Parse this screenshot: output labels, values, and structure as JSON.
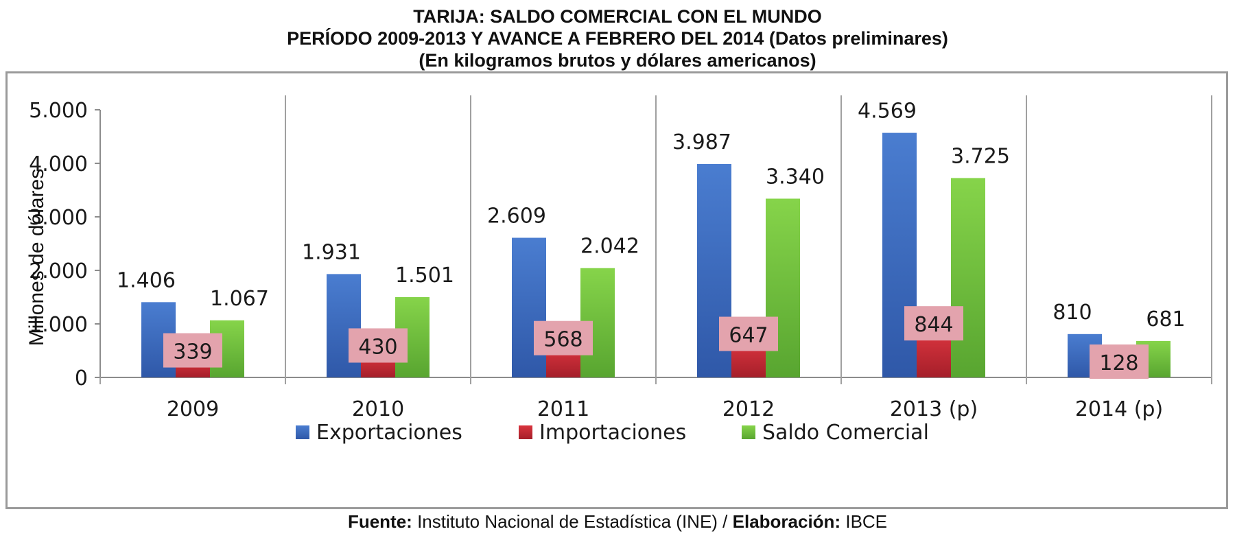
{
  "header": {
    "title": "TARIJA: SALDO COMERCIAL CON EL MUNDO",
    "subtitle": "PERÍODO 2009-2013 Y AVANCE A FEBRERO DEL 2014 (Datos preliminares)",
    "units": "(En kilogramos brutos y dólares americanos)"
  },
  "footer": {
    "source_label": "Fuente:",
    "source_text": "Instituto Nacional de Estadística (INE) /",
    "credit_label": "Elaboración:",
    "credit_text": "IBCE"
  },
  "chart_data": {
    "type": "bar",
    "categories": [
      "2009",
      "2010",
      "2011",
      "2012",
      "2013 (p)",
      "2014 (p)"
    ],
    "ylabel": "Millones de dólares",
    "ylim": [
      0,
      5000
    ],
    "yticks": [
      0,
      1000,
      2000,
      3000,
      4000,
      5000
    ],
    "ytick_labels": [
      "0",
      "1.000",
      "2.000",
      "3.000",
      "4.000",
      "5.000"
    ],
    "grid": false,
    "legend_position": "bottom",
    "series": [
      {
        "name": "Exportaciones",
        "color": "#3f6fc2",
        "values": [
          1406,
          1931,
          2609,
          3987,
          4569,
          810
        ],
        "labels": [
          "1.406",
          "1.931",
          "2.609",
          "3.987",
          "4.569",
          "810"
        ]
      },
      {
        "name": "Importaciones",
        "color": "#c42a34",
        "values": [
          339,
          430,
          568,
          647,
          844,
          128
        ],
        "labels": [
          "339",
          "430",
          "568",
          "647",
          "844",
          "128"
        ]
      },
      {
        "name": "Saldo Comercial",
        "color": "#6fbf3c",
        "values": [
          1067,
          1501,
          2042,
          3340,
          3725,
          681
        ],
        "labels": [
          "1.067",
          "1.501",
          "2.042",
          "3.340",
          "3.725",
          "681"
        ]
      }
    ]
  }
}
